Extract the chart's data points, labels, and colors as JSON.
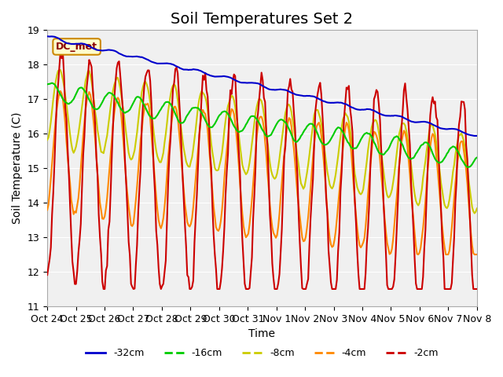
{
  "title": "Soil Temperatures Set 2",
  "xlabel": "Time",
  "ylabel": "Soil Temperature (C)",
  "ylim": [
    11.0,
    19.0
  ],
  "yticks": [
    11.0,
    12.0,
    13.0,
    14.0,
    15.0,
    16.0,
    17.0,
    18.0,
    19.0
  ],
  "xtick_labels": [
    "Oct 24",
    "Oct 25",
    "Oct 26",
    "Oct 27",
    "Oct 28",
    "Oct 29",
    "Oct 30",
    "Oct 31",
    "Nov 1",
    "Nov 2",
    "Nov 3",
    "Nov 4",
    "Nov 5",
    "Nov 6",
    "Nov 7",
    "Nov 8"
  ],
  "colors": {
    "-32cm": "#0000cc",
    "-16cm": "#00cc00",
    "-8cm": "#cccc00",
    "-4cm": "#ff8800",
    "-2cm": "#cc0000"
  },
  "legend_items": [
    "-32cm",
    "-16cm",
    "-8cm",
    "-4cm",
    "-2cm"
  ],
  "annotation_text": "DC_met",
  "annotation_bg": "#ffffcc",
  "annotation_border": "#cc8800",
  "background_color": "#e8e8e8",
  "plot_bg_color": "#f0f0f0",
  "title_fontsize": 14,
  "axis_fontsize": 10,
  "tick_fontsize": 9
}
